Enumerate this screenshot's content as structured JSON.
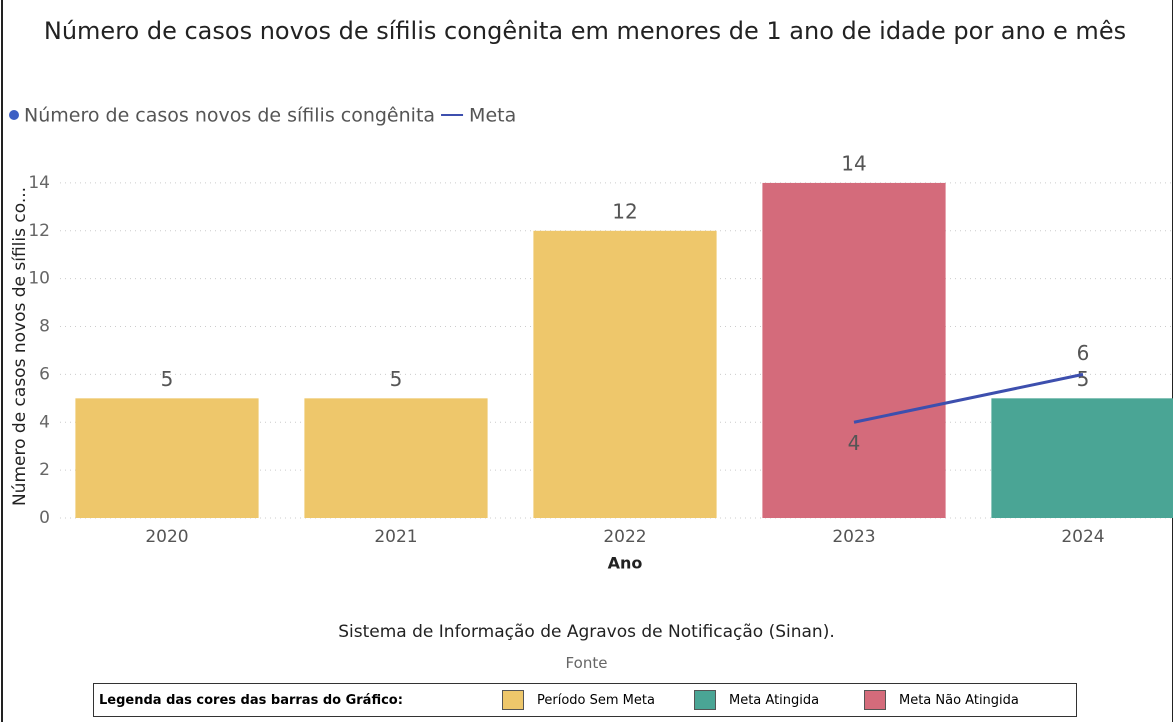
{
  "chart_data": {
    "type": "bar",
    "title": "Número de casos novos de sífilis congênita em menores de 1 ano de idade por ano e mês",
    "x_label": "Ano",
    "y_label": "Número de casos novos de sífilis co...",
    "categories": [
      "2020",
      "2021",
      "2022",
      "2023",
      "2024"
    ],
    "series": [
      {
        "name": "Número de casos novos de sífilis congênita",
        "type": "bar",
        "color": "#3d5fc4",
        "colors": [
          "#eec76b",
          "#eec76b",
          "#eec76b",
          "#d46b7b",
          "#4aa595"
        ],
        "values": [
          5,
          5,
          12,
          14,
          5
        ]
      },
      {
        "name": "Meta",
        "type": "line",
        "color": "#3d4fae",
        "values": [
          null,
          null,
          null,
          4,
          6
        ]
      }
    ],
    "ylim": [
      0,
      15
    ],
    "yticks": [
      0,
      2,
      4,
      6,
      8,
      10,
      12,
      14
    ],
    "grid": true
  },
  "footer": {
    "source": "Sistema de Informação de Agravos de Notificação (Sinan).",
    "source_label": "Fonte",
    "color_legend": {
      "title": "Legenda das cores das barras do Gráfico:",
      "items": [
        {
          "label": "Período Sem Meta",
          "color": "#eec76b"
        },
        {
          "label": "Meta Atingida",
          "color": "#4aa595"
        },
        {
          "label": "Meta Não Atingida",
          "color": "#d46b7b"
        }
      ]
    }
  }
}
